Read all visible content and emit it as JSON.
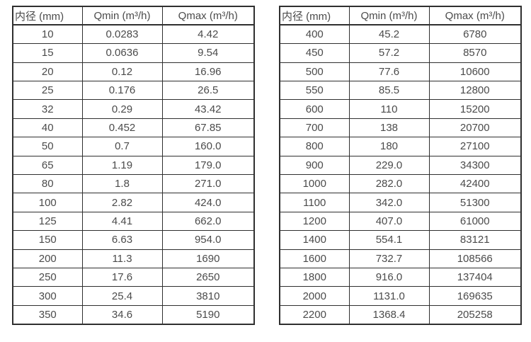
{
  "page": {
    "background": "#ffffff"
  },
  "colors": {
    "border": "#2f2f2f",
    "text": "#4b4b4b"
  },
  "tables": {
    "left": {
      "headers": [
        "内径 (mm)",
        "Qmin (m³/h)",
        "Qmax (m³/h)"
      ],
      "rows": [
        [
          "10",
          "0.0283",
          "4.42"
        ],
        [
          "15",
          "0.0636",
          "9.54"
        ],
        [
          "20",
          "0.12",
          "16.96"
        ],
        [
          "25",
          "0.176",
          "26.5"
        ],
        [
          "32",
          "0.29",
          "43.42"
        ],
        [
          "40",
          "0.452",
          "67.85"
        ],
        [
          "50",
          "0.7",
          "160.0"
        ],
        [
          "65",
          "1.19",
          "179.0"
        ],
        [
          "80",
          "1.8",
          "271.0"
        ],
        [
          "100",
          "2.82",
          "424.0"
        ],
        [
          "125",
          "4.41",
          "662.0"
        ],
        [
          "150",
          "6.63",
          "954.0"
        ],
        [
          "200",
          "11.3",
          "1690"
        ],
        [
          "250",
          "17.6",
          "2650"
        ],
        [
          "300",
          "25.4",
          "3810"
        ],
        [
          "350",
          "34.6",
          "5190"
        ]
      ]
    },
    "right": {
      "headers": [
        "内径 (mm)",
        "Qmin (m³/h)",
        "Qmax (m³/h)"
      ],
      "rows": [
        [
          "400",
          "45.2",
          "6780"
        ],
        [
          "450",
          "57.2",
          "8570"
        ],
        [
          "500",
          "77.6",
          "10600"
        ],
        [
          "550",
          "85.5",
          "12800"
        ],
        [
          "600",
          "110",
          "15200"
        ],
        [
          "700",
          "138",
          "20700"
        ],
        [
          "800",
          "180",
          "27100"
        ],
        [
          "900",
          "229.0",
          "34300"
        ],
        [
          "1000",
          "282.0",
          "42400"
        ],
        [
          "1100",
          "342.0",
          "51300"
        ],
        [
          "1200",
          "407.0",
          "61000"
        ],
        [
          "1400",
          "554.1",
          "83121"
        ],
        [
          "1600",
          "732.7",
          "108566"
        ],
        [
          "1800",
          "916.0",
          "137404"
        ],
        [
          "2000",
          "1131.0",
          "169635"
        ],
        [
          "2200",
          "1368.4",
          "205258"
        ]
      ]
    }
  }
}
